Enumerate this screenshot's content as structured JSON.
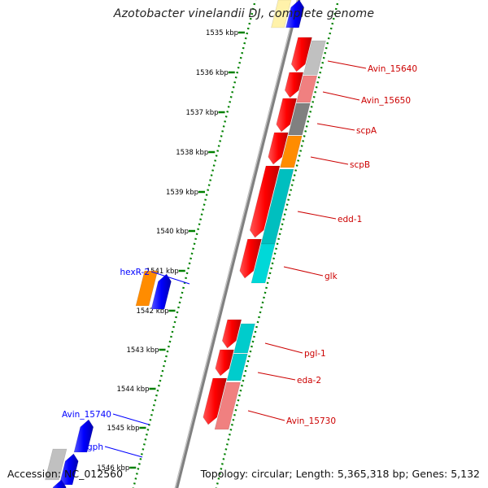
{
  "title": "Azotobacter vinelandii DJ, complete genome",
  "accession": "Accession: NC_012560",
  "topology": "Topology: circular; Length: 5,365,318 bp; Genes: 5,132",
  "ticks": [
    "1535 kbp",
    "1536 kbp",
    "1537 kbp",
    "1538 kbp",
    "1539 kbp",
    "1540 kbp",
    "1541 kbp",
    "1542 kbp",
    "1543 kbp",
    "1544 kbp",
    "1545 kbp",
    "1546 kbp"
  ],
  "colors": {
    "forward_gene": "#0000ff",
    "reverse_gene": "#ff0000",
    "backbone": "#808080",
    "scale_dots": "#008000",
    "label_forward": "#0000ff",
    "label_reverse": "#cc0000"
  },
  "genes_forward": [
    {
      "label": "",
      "color": "#fff2aa"
    },
    {
      "label": "",
      "color": "#0000ff"
    },
    {
      "label": "hexR-2",
      "color": "#ff8c00"
    },
    {
      "label": "",
      "color": "#0000ff"
    },
    {
      "label": "Avin_15740",
      "color": "#0000ff"
    },
    {
      "label": "gph",
      "color": "#c0c0c0"
    },
    {
      "label": "",
      "color": "#0000ff"
    },
    {
      "label": "",
      "color": "#0000ff"
    }
  ],
  "genes_reverse": [
    {
      "label": "Avin_15640",
      "color": "#c0c0c0"
    },
    {
      "label": "Avin_15650",
      "color": "#f08080"
    },
    {
      "label": "scpA",
      "color": "#808080"
    },
    {
      "label": "scpB",
      "color": "#ff8c00"
    },
    {
      "label": "edd-1",
      "color": "#00bfbf"
    },
    {
      "label": "glk",
      "color": "#00d8d8"
    },
    {
      "label": "pgl-1",
      "color": "#00cccc"
    },
    {
      "label": "eda-2",
      "color": "#00cccc"
    },
    {
      "label": "Avin_15730",
      "color": "#f08080"
    }
  ]
}
